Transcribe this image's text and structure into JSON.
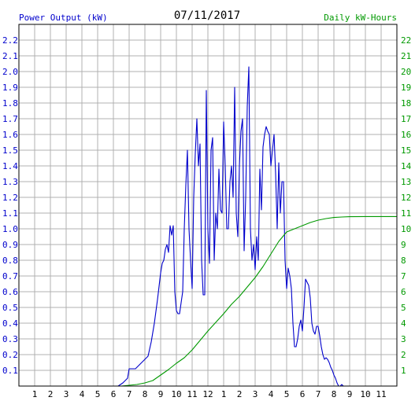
{
  "chart_data": {
    "type": "line",
    "title": "07/11/2017",
    "left_axis_label": "Power Output (kW)",
    "right_axis_label": "Daily kW-Hours",
    "x_ticks": [
      "1",
      "2",
      "3",
      "4",
      "5",
      "6",
      "7",
      "8",
      "9",
      "10",
      "11",
      "12",
      "1",
      "2",
      "3",
      "4",
      "5",
      "6",
      "7",
      "8",
      "9",
      "10",
      "11"
    ],
    "x_range": [
      0,
      24
    ],
    "ylim_left": [
      0,
      2.3
    ],
    "ylim_right": [
      0,
      23
    ],
    "yticks_left": [
      "0.1",
      "0.2",
      "0.3",
      "0.4",
      "0.5",
      "0.6",
      "0.7",
      "0.8",
      "0.9",
      "1.0",
      "1.1",
      "1.2",
      "1.3",
      "1.4",
      "1.5",
      "1.6",
      "1.7",
      "1.8",
      "1.9",
      "2.0",
      "2.1",
      "2.2"
    ],
    "yticks_right": [
      "1",
      "2",
      "3",
      "4",
      "5",
      "6",
      "7",
      "8",
      "9",
      "10",
      "11",
      "12",
      "13",
      "14",
      "15",
      "16",
      "17",
      "18",
      "19",
      "20",
      "21",
      "22"
    ],
    "grid": true,
    "colors": {
      "power": "#0000cc",
      "energy": "#009900",
      "grid": "#b0b0b0",
      "axis_text_left": "#0000cc",
      "axis_text_right": "#009900",
      "title": "#000000"
    },
    "series": [
      {
        "axis": "left",
        "x": [
          6.3,
          6.6,
          6.9,
          7.0,
          7.2,
          7.4,
          7.6,
          7.8,
          8.0,
          8.2,
          8.4,
          8.6,
          8.8,
          9.0,
          9.1,
          9.2,
          9.3,
          9.4,
          9.5,
          9.6,
          9.7,
          9.8,
          9.9,
          10.0,
          10.1,
          10.2,
          10.4,
          10.5,
          10.6,
          10.7,
          10.8,
          10.9,
          11.0,
          11.1,
          11.2,
          11.3,
          11.4,
          11.5,
          11.6,
          11.7,
          11.8,
          11.9,
          12.0,
          12.1,
          12.2,
          12.3,
          12.4,
          12.5,
          12.6,
          12.7,
          12.8,
          12.9,
          13.0,
          13.1,
          13.2,
          13.3,
          13.4,
          13.5,
          13.6,
          13.7,
          13.8,
          13.9,
          14.0,
          14.1,
          14.2,
          14.3,
          14.4,
          14.5,
          14.6,
          14.7,
          14.8,
          14.9,
          15.0,
          15.1,
          15.2,
          15.3,
          15.4,
          15.5,
          15.6,
          15.7,
          15.8,
          15.9,
          16.0,
          16.1,
          16.2,
          16.3,
          16.4,
          16.5,
          16.6,
          16.7,
          16.8,
          16.9,
          17.0,
          17.1,
          17.2,
          17.3,
          17.4,
          17.5,
          17.6,
          17.7,
          17.8,
          17.9,
          18.0,
          18.1,
          18.2,
          18.3,
          18.4,
          18.5,
          18.6,
          18.7,
          18.8,
          18.9,
          19.0,
          19.1,
          19.2,
          19.3,
          19.4,
          19.5,
          19.6,
          19.7,
          19.8,
          19.9,
          20.0,
          20.1,
          20.2,
          20.3,
          20.4,
          20.5,
          20.6,
          20.8,
          21.0
        ],
        "values": [
          0.0,
          0.02,
          0.05,
          0.11,
          0.11,
          0.11,
          0.13,
          0.15,
          0.17,
          0.19,
          0.28,
          0.4,
          0.55,
          0.72,
          0.78,
          0.8,
          0.87,
          0.9,
          0.85,
          1.02,
          0.96,
          1.02,
          0.6,
          0.48,
          0.46,
          0.46,
          0.6,
          1.0,
          1.28,
          1.5,
          1.0,
          0.8,
          0.62,
          1.2,
          1.48,
          1.7,
          1.4,
          1.54,
          0.8,
          0.58,
          0.58,
          1.88,
          1.0,
          0.78,
          1.5,
          1.58,
          0.8,
          1.1,
          1.0,
          1.38,
          1.12,
          1.1,
          1.68,
          1.4,
          1.0,
          1.0,
          1.3,
          1.4,
          1.2,
          1.9,
          1.1,
          0.95,
          1.4,
          1.62,
          1.7,
          0.86,
          1.2,
          1.78,
          2.03,
          1.0,
          0.8,
          0.9,
          0.74,
          0.95,
          0.8,
          1.38,
          1.12,
          1.52,
          1.6,
          1.65,
          1.62,
          1.6,
          1.4,
          1.5,
          1.6,
          1.35,
          1.0,
          1.42,
          1.1,
          1.3,
          1.3,
          0.8,
          0.62,
          0.75,
          0.7,
          0.62,
          0.4,
          0.25,
          0.25,
          0.3,
          0.38,
          0.42,
          0.35,
          0.5,
          0.68,
          0.66,
          0.64,
          0.56,
          0.4,
          0.35,
          0.33,
          0.38,
          0.38,
          0.32,
          0.25,
          0.2,
          0.17,
          0.18,
          0.17,
          0.15,
          0.12,
          0.1,
          0.07,
          0.05,
          0.02,
          0.0,
          0.0,
          0.01,
          0.0,
          0.0,
          0.0
        ]
      },
      {
        "axis": "right",
        "x": [
          6.5,
          7.5,
          8.0,
          8.5,
          9.0,
          9.5,
          10.0,
          10.5,
          11.0,
          11.5,
          12.0,
          12.5,
          13.0,
          13.5,
          14.0,
          14.5,
          15.0,
          15.5,
          16.0,
          16.5,
          17.0,
          17.5,
          18.0,
          18.5,
          19.0,
          19.5,
          20.0,
          20.5,
          21.0,
          22.0,
          23.0,
          24.0
        ],
        "values": [
          0.0,
          0.1,
          0.2,
          0.35,
          0.7,
          1.05,
          1.45,
          1.8,
          2.3,
          2.9,
          3.5,
          4.05,
          4.6,
          5.2,
          5.7,
          6.3,
          6.9,
          7.6,
          8.4,
          9.2,
          9.8,
          10.0,
          10.2,
          10.4,
          10.55,
          10.65,
          10.72,
          10.75,
          10.77,
          10.78,
          10.78,
          10.78
        ]
      }
    ]
  }
}
